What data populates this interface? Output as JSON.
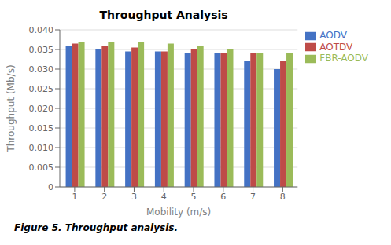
{
  "chart_data": {
    "type": "bar",
    "title": "Throughput Analysis",
    "xlabel": "Mobility (m/s)",
    "ylabel": "Throughput (Mb/s)",
    "caption": "Figure 5.  Throughput analysis.",
    "categories": [
      1,
      2,
      3,
      4,
      5,
      6,
      7,
      8
    ],
    "series": [
      {
        "name": "AODV",
        "color": "#4472C4",
        "values": [
          0.036,
          0.035,
          0.0345,
          0.0345,
          0.034,
          0.034,
          0.032,
          0.03
        ]
      },
      {
        "name": "AOTDV",
        "color": "#BE4B48",
        "values": [
          0.0365,
          0.036,
          0.0355,
          0.0345,
          0.035,
          0.034,
          0.034,
          0.032
        ]
      },
      {
        "name": "FBR-AODV",
        "color": "#9BBB59",
        "values": [
          0.037,
          0.037,
          0.037,
          0.0365,
          0.036,
          0.035,
          0.034,
          0.034
        ]
      }
    ],
    "ylim": [
      0,
      0.04
    ],
    "yticks": [
      0,
      0.005,
      {
        "value": 0.01,
        "label": "0.010"
      },
      0.015,
      {
        "value": 0.02,
        "label": "0.020"
      },
      0.025,
      {
        "value": 0.03,
        "label": "0.030"
      },
      0.035,
      {
        "value": 0.04,
        "label": "0.040"
      }
    ],
    "grid": true,
    "legend": "right"
  }
}
